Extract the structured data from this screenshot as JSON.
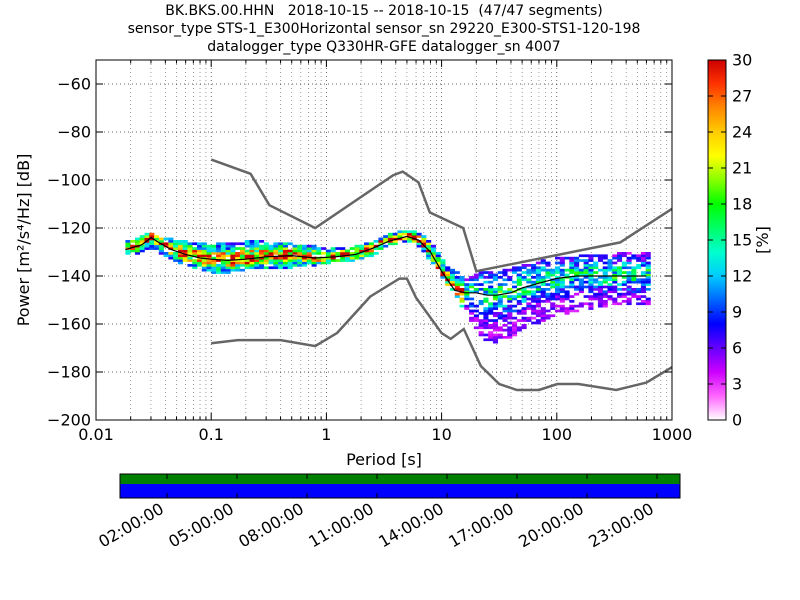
{
  "chart_data": {
    "type": "heatmap",
    "title_lines": [
      "BK.BKS.00.HHN   2018-10-15 -- 2018-10-15  (47/47 segments)",
      "sensor_type STS-1_E300Horizontal sensor_sn 29220_E300-STS1-120-198",
      "datalogger_type Q330HR-GFE datalogger_sn 4007"
    ],
    "xlabel": "Period [s]",
    "ylabel": "Power [m²/s⁴/Hz] [dB]",
    "x_scale": "log",
    "xlim": [
      0.01,
      1000
    ],
    "ylim": [
      -200,
      -50
    ],
    "x_ticks": [
      {
        "value": 0.01,
        "label": "0.01"
      },
      {
        "value": 0.1,
        "label": "0.1"
      },
      {
        "value": 1,
        "label": "1"
      },
      {
        "value": 10,
        "label": "10"
      },
      {
        "value": 100,
        "label": "100"
      },
      {
        "value": 1000,
        "label": "1000"
      }
    ],
    "y_ticks": [
      {
        "value": -60,
        "label": "−60"
      },
      {
        "value": -80,
        "label": "−80"
      },
      {
        "value": -100,
        "label": "−100"
      },
      {
        "value": -120,
        "label": "−120"
      },
      {
        "value": -140,
        "label": "−140"
      },
      {
        "value": -160,
        "label": "−160"
      },
      {
        "value": -180,
        "label": "−180"
      },
      {
        "value": -200,
        "label": "−200"
      }
    ],
    "grid": true,
    "colorbar": {
      "label": "[%]",
      "range": [
        0,
        30
      ],
      "ticks": [
        {
          "value": 0,
          "label": "0"
        },
        {
          "value": 3,
          "label": "3"
        },
        {
          "value": 6,
          "label": "6"
        },
        {
          "value": 9,
          "label": "9"
        },
        {
          "value": 12,
          "label": "12"
        },
        {
          "value": 15,
          "label": "15"
        },
        {
          "value": 18,
          "label": "18"
        },
        {
          "value": 21,
          "label": "21"
        },
        {
          "value": 24,
          "label": "24"
        },
        {
          "value": 27,
          "label": "27"
        },
        {
          "value": 30,
          "label": "30"
        }
      ],
      "colors": [
        "#ffffff",
        "#ff66ff",
        "#cc00ff",
        "#6600ff",
        "#0000ff",
        "#0066ff",
        "#00ccff",
        "#00ffcc",
        "#00ff66",
        "#00ff00",
        "#88ff00",
        "#ffff00",
        "#ffcc00",
        "#ff8800",
        "#ff3300",
        "#cc0000"
      ]
    },
    "noise_models": {
      "color": "#666666",
      "high": {
        "x": [
          0.1,
          0.22,
          0.32,
          0.8,
          3.8,
          4.6,
          6.3,
          7.9,
          15.4,
          20,
          354.8,
          1000
        ],
        "y": [
          -91.5,
          -97.4,
          -110.5,
          -120,
          -98,
          -96.5,
          -101,
          -113.5,
          -120,
          -138,
          -126,
          -112
        ]
      },
      "low": {
        "x": [
          0.1,
          0.17,
          0.4,
          0.8,
          1.24,
          2.4,
          4.3,
          5,
          6,
          10,
          12,
          15.6,
          21.9,
          31.6,
          45,
          70,
          101,
          154,
          328,
          600,
          1000
        ],
        "y": [
          -168,
          -166.7,
          -166.7,
          -169.2,
          -163.7,
          -148.6,
          -141.1,
          -141.1,
          -149,
          -163.8,
          -166.2,
          -162.1,
          -177.5,
          -185,
          -187.5,
          -187.5,
          -185,
          -185,
          -187.5,
          -184.4,
          -178
        ]
      }
    },
    "mean_curve": {
      "color": "#000000",
      "x": [
        0.018,
        0.025,
        0.03,
        0.035,
        0.045,
        0.06,
        0.08,
        0.1,
        0.14,
        0.2,
        0.3,
        0.5,
        0.8,
        1.2,
        1.8,
        2.5,
        3.5,
        5,
        6.3,
        8,
        10,
        13,
        16,
        20,
        25,
        30,
        40,
        50,
        70,
        100,
        150,
        300,
        600
      ],
      "y": [
        -129,
        -127,
        -124,
        -126,
        -129,
        -131,
        -132.5,
        -133,
        -133.5,
        -133,
        -132,
        -131.5,
        -132.5,
        -132,
        -131,
        -128.5,
        -125.5,
        -123.5,
        -125,
        -130,
        -138,
        -146,
        -147,
        -147,
        -148,
        -148,
        -147,
        -145,
        -143,
        -141,
        -140,
        -140,
        -140
      ]
    },
    "envelope_upper": {
      "x": [
        0.018,
        0.025,
        0.03,
        0.035,
        0.045,
        0.06,
        0.08,
        0.1,
        0.14,
        0.2,
        0.3,
        0.5,
        0.8,
        1.2,
        1.8,
        2.5,
        3.5,
        5,
        6.3,
        8,
        10,
        13,
        16,
        20,
        25,
        30,
        40,
        50,
        70,
        100,
        150,
        300,
        600
      ],
      "y": [
        -126,
        -124,
        -122,
        -124,
        -125,
        -126,
        -127,
        -127,
        -127,
        -126,
        -126,
        -127,
        -128,
        -129,
        -128,
        -126,
        -123,
        -121,
        -122,
        -126,
        -133,
        -138,
        -142,
        -139,
        -139,
        -138,
        -137,
        -136,
        -134,
        -133,
        -132,
        -131,
        -130
      ]
    },
    "envelope_lower": {
      "x": [
        0.018,
        0.025,
        0.03,
        0.035,
        0.045,
        0.06,
        0.08,
        0.1,
        0.14,
        0.2,
        0.3,
        0.5,
        0.8,
        1.2,
        1.8,
        2.5,
        3.5,
        5,
        6.3,
        8,
        10,
        13,
        16,
        20,
        25,
        30,
        40,
        50,
        70,
        100,
        150,
        300,
        600
      ],
      "y": [
        -132,
        -131,
        -129,
        -131,
        -134,
        -136,
        -138,
        -139,
        -139,
        -138,
        -137,
        -137,
        -136,
        -135,
        -134,
        -132,
        -128,
        -126,
        -128,
        -134,
        -141,
        -148,
        -156,
        -163,
        -168,
        -168,
        -166,
        -163,
        -160,
        -157,
        -155,
        -153,
        -152
      ]
    },
    "data_coverage": {
      "tick_labels": [
        "02:00:00",
        "05:00:00",
        "08:00:00",
        "11:00:00",
        "14:00:00",
        "17:00:00",
        "20:00:00",
        "23:00:00"
      ],
      "data_color": "#0000ff",
      "gap_color": "#008000"
    }
  }
}
